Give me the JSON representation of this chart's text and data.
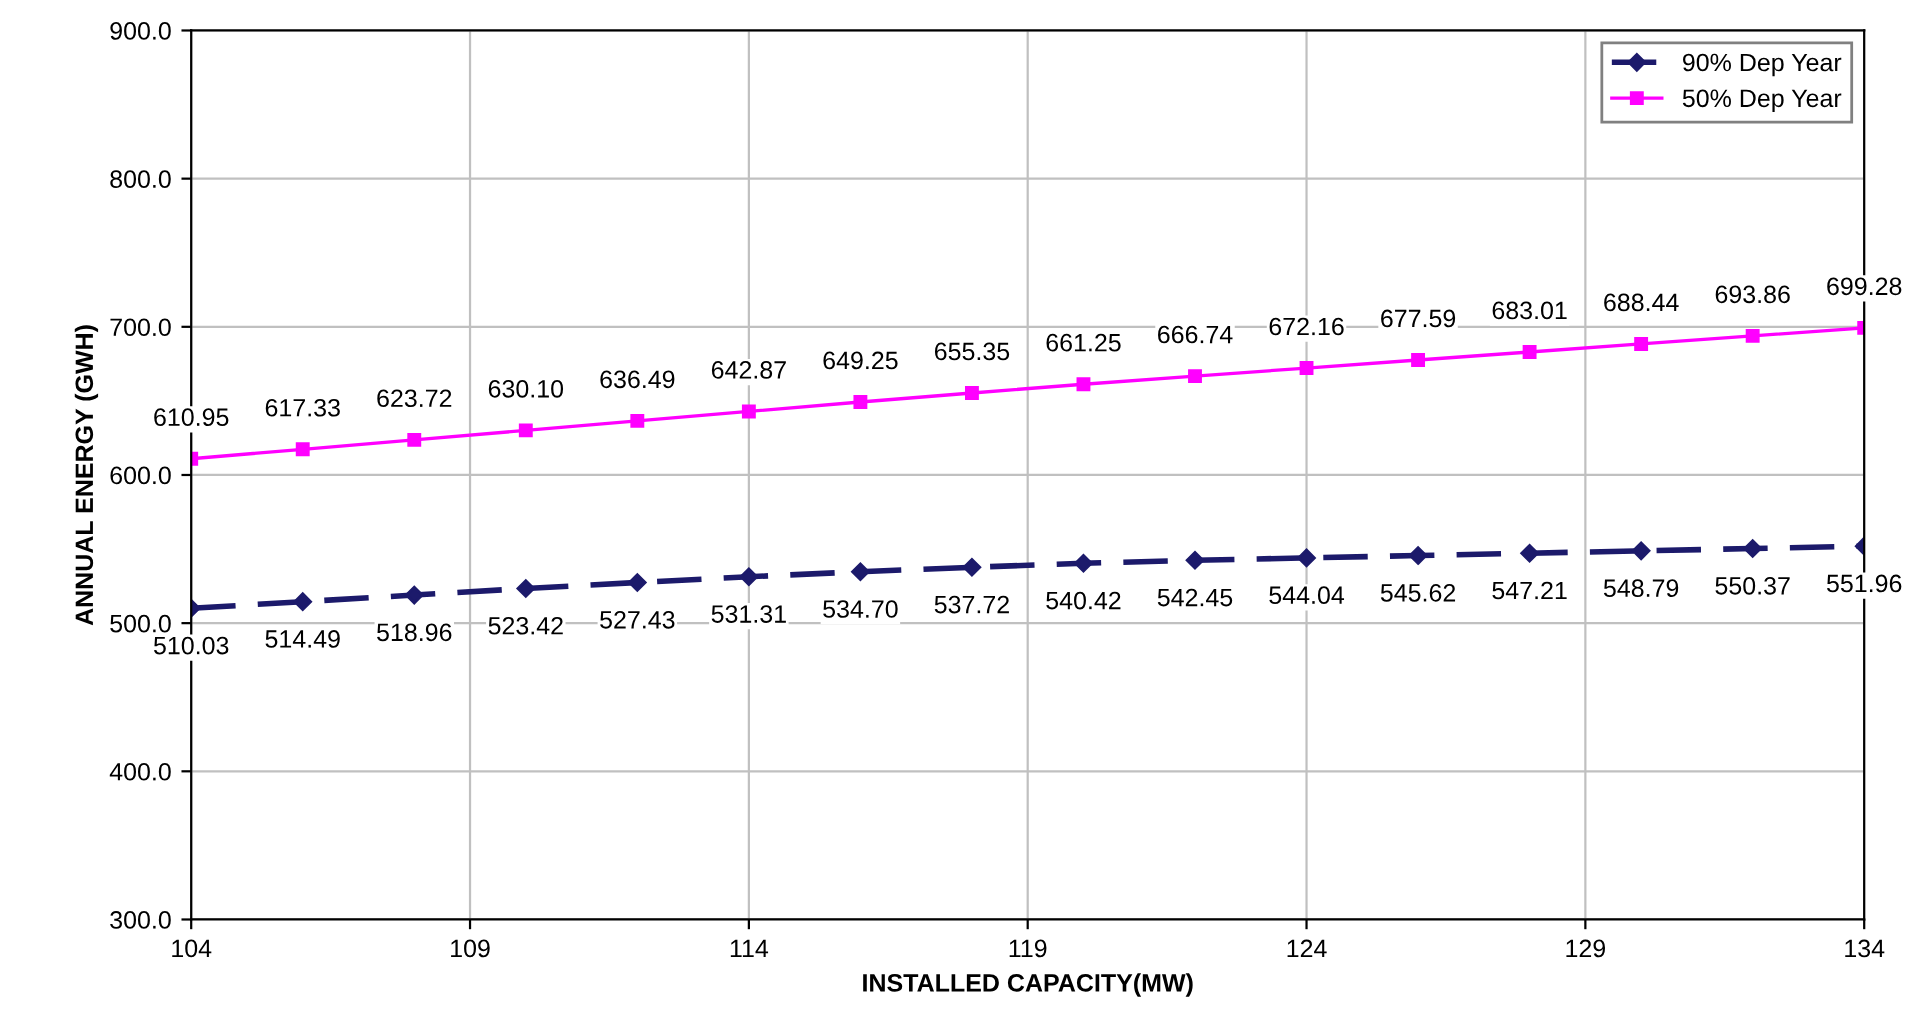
{
  "chart_data": {
    "type": "line",
    "xlabel": "INSTALLED CAPACITY(MW)",
    "ylabel": "ANNUAL ENERGY (GWH)",
    "x": [
      104,
      106,
      108,
      110,
      112,
      114,
      116,
      118,
      120,
      122,
      124,
      126,
      128,
      130,
      132,
      134
    ],
    "xlim": [
      104,
      134
    ],
    "xticks": [
      104,
      109,
      114,
      119,
      124,
      129,
      134
    ],
    "ylim": [
      300,
      900
    ],
    "yticks": [
      {
        "value": 300,
        "label": "300.0"
      },
      {
        "value": 400,
        "label": "400.0"
      },
      {
        "value": 500,
        "label": "500.0"
      },
      {
        "value": 600,
        "label": "600.0"
      },
      {
        "value": 700,
        "label": "700.0"
      },
      {
        "value": 800,
        "label": "800.0"
      },
      {
        "value": 900,
        "label": "900.0"
      }
    ],
    "grid": true,
    "legend": "top right",
    "series": [
      {
        "name": "90% Dep Year",
        "color": "#1c1a6b",
        "marker": "diamond",
        "line_style": "dashed",
        "values": [
          510.03,
          514.49,
          518.96,
          523.42,
          527.43,
          531.31,
          534.7,
          537.72,
          540.42,
          542.45,
          544.04,
          545.62,
          547.21,
          548.79,
          550.37,
          551.96
        ],
        "value_labels": [
          "510.03",
          "514.49",
          "518.96",
          "523.42",
          "527.43",
          "531.31",
          "534.70",
          "537.72",
          "540.42",
          "542.45",
          "544.04",
          "545.62",
          "547.21",
          "548.79",
          "550.37",
          "551.96"
        ]
      },
      {
        "name": "50% Dep Year",
        "color": "#ff00ff",
        "marker": "square",
        "line_style": "solid",
        "values": [
          610.95,
          617.33,
          623.72,
          630.1,
          636.49,
          642.87,
          649.25,
          655.35,
          661.25,
          666.74,
          672.16,
          677.59,
          683.01,
          688.44,
          693.86,
          699.28
        ],
        "value_labels": [
          "610.95",
          "617.33",
          "623.72",
          "630.10",
          "636.49",
          "642.87",
          "649.25",
          "655.35",
          "661.25",
          "666.74",
          "672.16",
          "677.59",
          "683.01",
          "688.44",
          "693.86",
          "699.28"
        ]
      }
    ]
  }
}
